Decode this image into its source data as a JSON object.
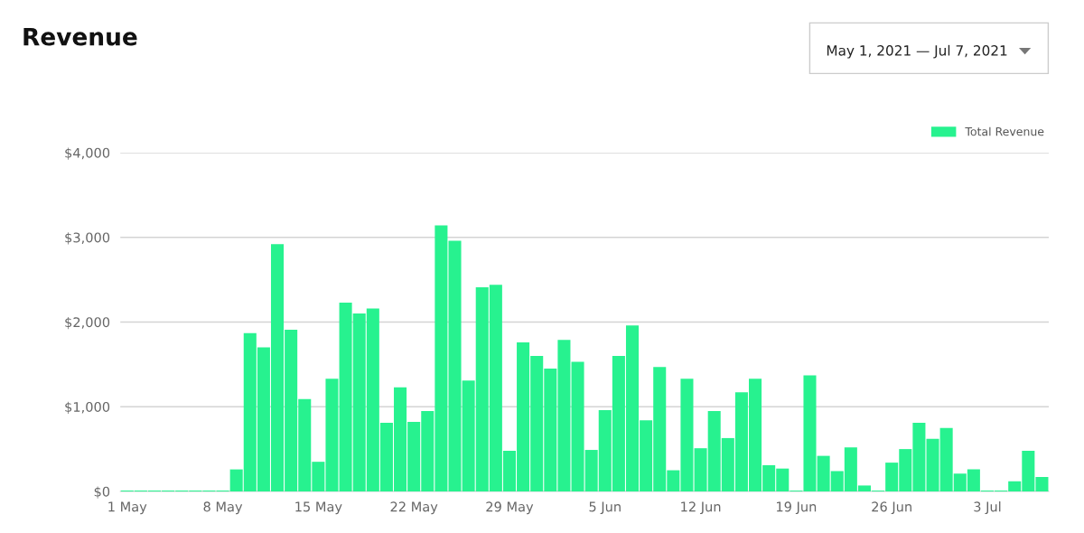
{
  "chart_data": {
    "type": "bar",
    "title": "Revenue",
    "annotations": [
      "May 1, 2021 — Jul 7, 2021"
    ],
    "categories": [
      "1 May",
      null,
      null,
      null,
      null,
      null,
      null,
      "8 May",
      null,
      null,
      null,
      null,
      null,
      null,
      "15 May",
      null,
      null,
      null,
      null,
      null,
      null,
      "22 May",
      null,
      null,
      null,
      null,
      null,
      null,
      "29 May",
      null,
      null,
      null,
      null,
      null,
      null,
      "5 Jun",
      null,
      null,
      null,
      null,
      null,
      null,
      "12 Jun",
      null,
      null,
      null,
      null,
      null,
      null,
      "19 Jun",
      null,
      null,
      null,
      null,
      null,
      null,
      "26 Jun",
      null,
      null,
      null,
      null,
      null,
      null,
      "3 Jul",
      null,
      null,
      null,
      null
    ],
    "series": [
      {
        "name": "Total Revenue",
        "color": "#27f28f",
        "values": [
          10,
          10,
          10,
          10,
          10,
          10,
          10,
          10,
          260,
          1870,
          1700,
          2920,
          1910,
          1090,
          350,
          1330,
          2230,
          2100,
          2160,
          810,
          1230,
          820,
          950,
          3140,
          2960,
          1310,
          2410,
          2440,
          480,
          1760,
          1600,
          1450,
          1790,
          1530,
          490,
          960,
          1600,
          1960,
          840,
          1470,
          250,
          1330,
          510,
          950,
          630,
          1170,
          1330,
          310,
          270,
          10,
          1370,
          420,
          240,
          520,
          70,
          10,
          340,
          500,
          810,
          620,
          750,
          210,
          260,
          10,
          10,
          120,
          480,
          170
        ]
      }
    ],
    "ylim": [
      0,
      4000
    ],
    "yticks": [
      {
        "value": 0,
        "label": "$0"
      },
      {
        "value": 1000,
        "label": "$1,000"
      },
      {
        "value": 2000,
        "label": "$2,000"
      },
      {
        "value": 3000,
        "label": "$3,000"
      },
      {
        "value": 4000,
        "label": "$4,000"
      }
    ],
    "grid": "y",
    "legend": "top right"
  }
}
